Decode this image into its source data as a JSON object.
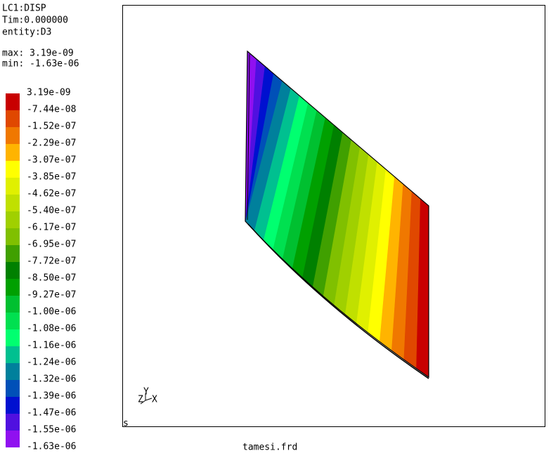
{
  "header": {
    "lines": [
      "LC1:DISP",
      "Tim:0.000000",
      "entity:D3"
    ],
    "max": "max: 3.19e-09",
    "min": "min: -1.63e-06"
  },
  "legend": {
    "labels": [
      "3.19e-09",
      "-7.44e-08",
      "-1.52e-07",
      "-2.29e-07",
      "-3.07e-07",
      "-3.85e-07",
      "-4.62e-07",
      "-5.40e-07",
      "-6.17e-07",
      "-6.95e-07",
      "-7.72e-07",
      "-8.50e-07",
      "-9.27e-07",
      "-1.00e-06",
      "-1.08e-06",
      "-1.16e-06",
      "-1.24e-06",
      "-1.32e-06",
      "-1.39e-06",
      "-1.47e-06",
      "-1.55e-06",
      "-1.63e-06"
    ],
    "colors": [
      "#c80000",
      "#e04800",
      "#f07800",
      "#ffb400",
      "#ffff00",
      "#e0f000",
      "#c0e000",
      "#a0d000",
      "#80c000",
      "#40a000",
      "#008000",
      "#00a000",
      "#00c030",
      "#00e050",
      "#00ff70",
      "#00c090",
      "#00809c",
      "#0050b8",
      "#0010d0",
      "#5010e0",
      "#9010f0"
    ]
  },
  "viewport": {
    "corner_label": "s",
    "axes": [
      "Z",
      "Y",
      "X"
    ]
  },
  "footer": {
    "filename": "tamesi.frd"
  }
}
